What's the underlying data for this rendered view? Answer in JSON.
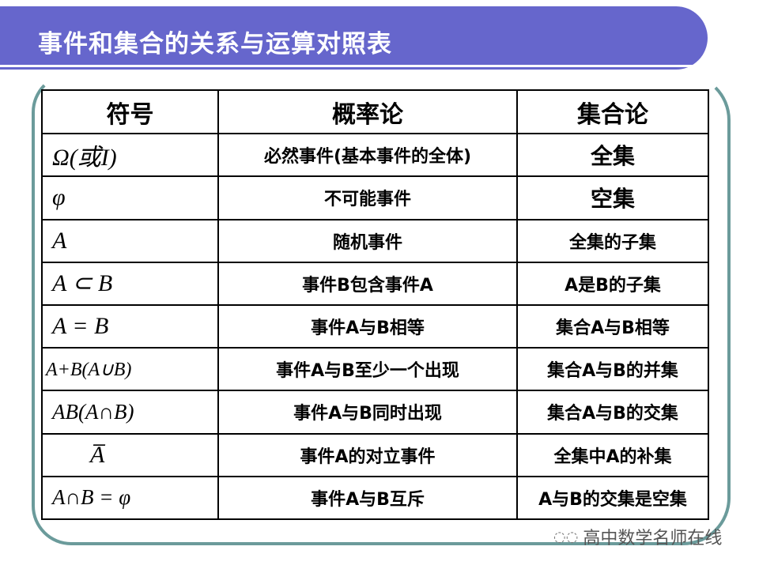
{
  "title": "事件和集合的关系与运算对照表",
  "table": {
    "headers": [
      "符号",
      "概率论",
      "集合论"
    ],
    "rows": [
      [
        "Ω(或I)",
        "必然事件(基本事件的全体)",
        "全集"
      ],
      [
        "φ",
        "不可能事件",
        "空集"
      ],
      [
        "A",
        "随机事件",
        "全集的子集"
      ],
      [
        "A ⊂ B",
        "事件B包含事件A",
        "A是B的子集"
      ],
      [
        "A = B",
        "事件A与B相等",
        "集合A与B相等"
      ],
      [
        "A+B(A∪B)",
        "事件A与B至少一个出现",
        "集合A与B的并集"
      ],
      [
        "AB(A∩B)",
        "事件A与B同时出现",
        "集合A与B的交集"
      ],
      [
        "A̅",
        "事件A的对立事件",
        "全集中A的补集"
      ],
      [
        "A∩B = φ",
        "事件A与B互斥",
        "A与B的交集是空集"
      ]
    ]
  },
  "watermark": {
    "icon": "wechat-icon",
    "text": "高中数学名师在线"
  },
  "colors": {
    "title_bar": "#6666cc",
    "frame": "#6b9b9b"
  }
}
